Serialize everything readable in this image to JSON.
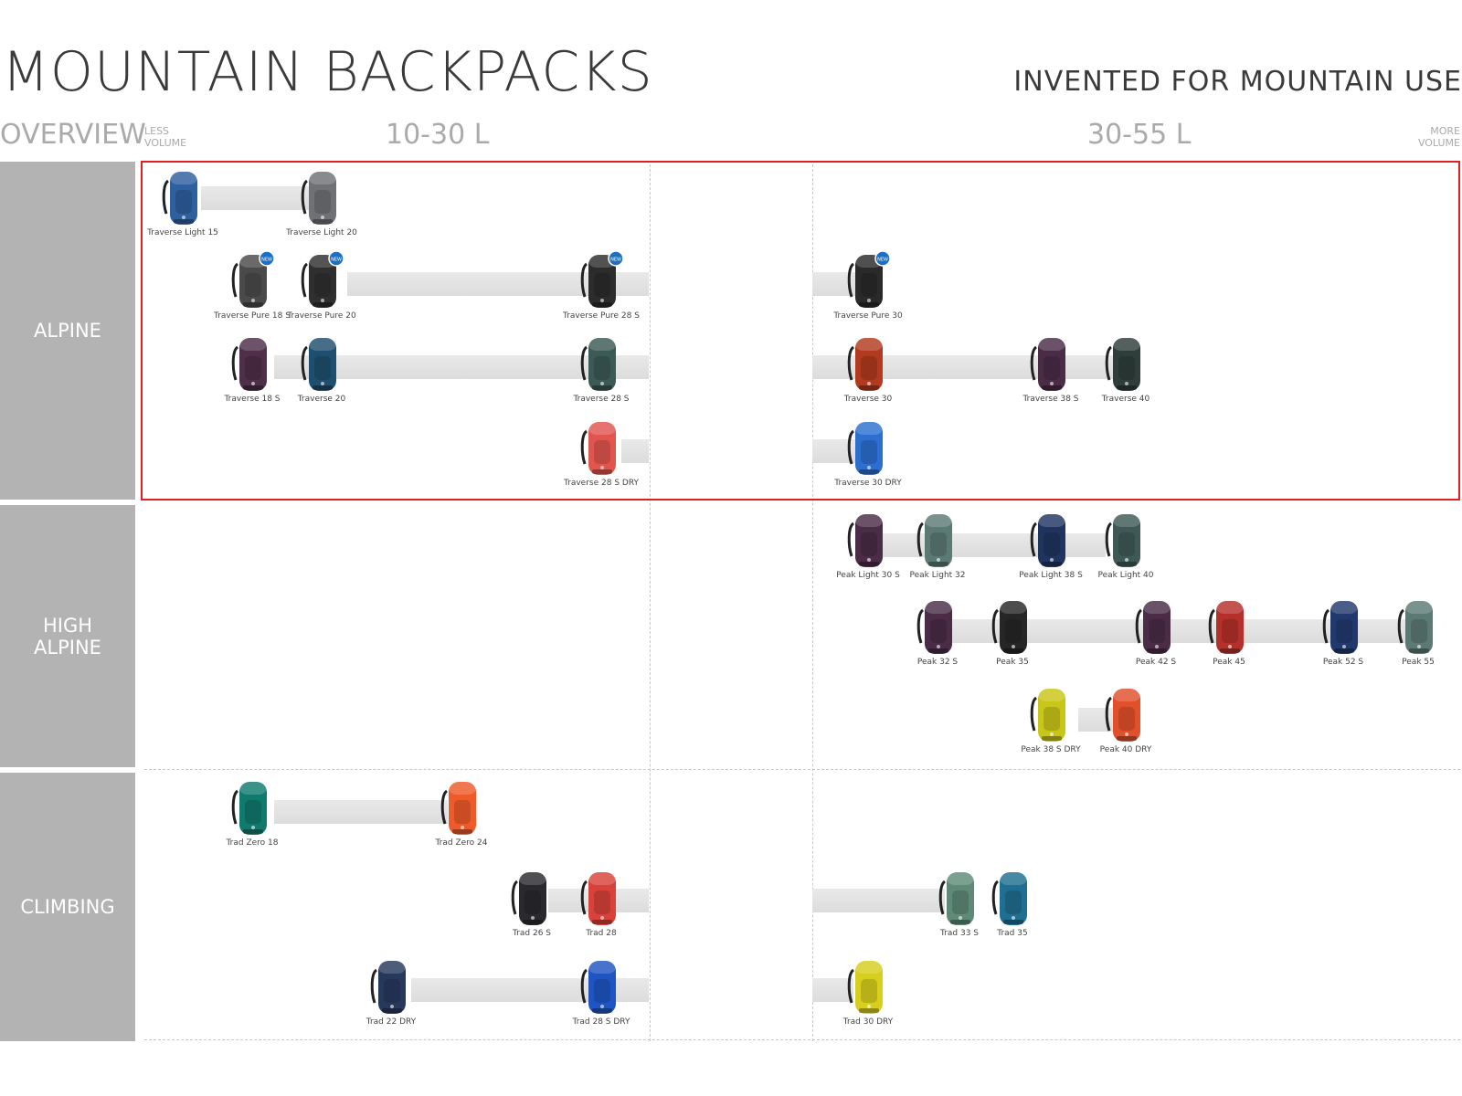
{
  "header": {
    "title": "MOUNTAIN BACKPACKS",
    "tagline": "INVENTED FOR MOUNTAIN USE",
    "overview": "OVERVIEW",
    "less": "LESS VOLUME",
    "more": "MORE VOLUME",
    "range_low": "10-30 L",
    "range_high": "30-55 L"
  },
  "categories": {
    "alpine": "ALPINE",
    "high_alpine": "HIGH ALPINE",
    "climbing": "CLIMBING"
  },
  "colors": {
    "highlight": "#e02020",
    "category_bg": "#b3b3b3",
    "new_badge": "#1f6fc0"
  },
  "packs": [
    {
      "name": "Traverse Light 15",
      "color": "#2e5f9e",
      "new": false
    },
    {
      "name": "Traverse Light 20",
      "color": "#6f7175",
      "new": false
    },
    {
      "name": "Traverse Pure 18 S",
      "color": "#4a4a4a",
      "new": true
    },
    {
      "name": "Traverse Pure 20",
      "color": "#2f2f2f",
      "new": true
    },
    {
      "name": "Traverse Pure 28 S",
      "color": "#2c2c2c",
      "new": true
    },
    {
      "name": "Traverse Pure 30",
      "color": "#2a2a2a",
      "new": true
    },
    {
      "name": "Traverse 18 S",
      "color": "#4e2e48",
      "new": false
    },
    {
      "name": "Traverse 20",
      "color": "#1f4f6f",
      "new": false
    },
    {
      "name": "Traverse 28 S",
      "color": "#3c5a55",
      "new": false
    },
    {
      "name": "Traverse 30",
      "color": "#b33a1e",
      "new": false
    },
    {
      "name": "Traverse 38 S",
      "color": "#4a2c47",
      "new": false
    },
    {
      "name": "Traverse 40",
      "color": "#2f3e3b",
      "new": false
    },
    {
      "name": "Traverse 28 S DRY",
      "color": "#e2554f",
      "new": false
    },
    {
      "name": "Traverse 30 DRY",
      "color": "#2c6fd1",
      "new": false
    },
    {
      "name": "Peak Light 30 S",
      "color": "#4a2c47",
      "new": false
    },
    {
      "name": "Peak Light 32",
      "color": "#5c7a74",
      "new": false
    },
    {
      "name": "Peak Light 38 S",
      "color": "#1f3560",
      "new": false
    },
    {
      "name": "Peak Light 40",
      "color": "#3f5a56",
      "new": false
    },
    {
      "name": "Peak 32 S",
      "color": "#4a2c47",
      "new": false
    },
    {
      "name": "Peak 35",
      "color": "#262626",
      "new": false
    },
    {
      "name": "Peak 42 S",
      "color": "#4a2c47",
      "new": false
    },
    {
      "name": "Peak 45",
      "color": "#b5302a",
      "new": false
    },
    {
      "name": "Peak 52 S",
      "color": "#213a6e",
      "new": false
    },
    {
      "name": "Peak 55",
      "color": "#5c7a74",
      "new": false
    },
    {
      "name": "Peak 38 S DRY",
      "color": "#c8c618",
      "new": false
    },
    {
      "name": "Peak 40 DRY",
      "color": "#e2502b",
      "new": false
    },
    {
      "name": "Trad Zero 18",
      "color": "#117a6e",
      "new": false
    },
    {
      "name": "Trad Zero 24",
      "color": "#ee5a2a",
      "new": false
    },
    {
      "name": "Trad 26 S",
      "color": "#2a2a2e",
      "new": false
    },
    {
      "name": "Trad 28",
      "color": "#d8423a",
      "new": false
    },
    {
      "name": "Trad 33 S",
      "color": "#5f8a78",
      "new": false
    },
    {
      "name": "Trad 35",
      "color": "#1f6f92",
      "new": false
    },
    {
      "name": "Trad 22 DRY",
      "color": "#26395c",
      "new": false
    },
    {
      "name": "Trad 28 S DRY",
      "color": "#1f55c2",
      "new": false
    },
    {
      "name": "Trad 30 DRY",
      "color": "#d7cf1d",
      "new": false
    }
  ]
}
